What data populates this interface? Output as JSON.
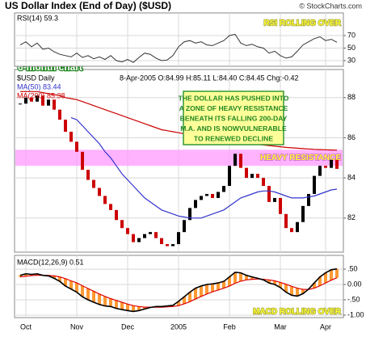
{
  "chart_data": [
    {
      "type": "candlestick",
      "title": "US Dollar Index (End of Day) ($USD)",
      "source": "© StockCharts.com",
      "quote": "8-Apr-2005 O:84.99 H:85.11 L:84.40 C:84.45 Chg:-0.42",
      "ylim": [
        80.3,
        89.4
      ],
      "yticks": [
        82,
        84,
        86,
        88
      ],
      "grid": true,
      "series": [
        {
          "name": "$USD Daily",
          "up_color": "#000000",
          "down_color": "#cc0000",
          "values": [
            87.7,
            88.0,
            87.8,
            88.1,
            87.6,
            87.9,
            87.4,
            86.9,
            86.3,
            85.8,
            85.3,
            84.4,
            83.9,
            83.5,
            83.1,
            82.7,
            82.4,
            81.9,
            81.5,
            81.2,
            80.8,
            81.0,
            81.2,
            81.3,
            81.0,
            80.7,
            80.6,
            80.7,
            81.3,
            81.9,
            82.5,
            82.9,
            83.1,
            83.2,
            83.0,
            83.3,
            83.6,
            84.6,
            85.2,
            84.5,
            84.0,
            84.2,
            84.0,
            83.6,
            82.8,
            83.0,
            82.2,
            81.5,
            81.3,
            81.8,
            82.6,
            83.2,
            84.1,
            84.6,
            84.5,
            84.9,
            84.45
          ]
        },
        {
          "name": "MA(50) 83.44",
          "color": "#3333cc",
          "values": [
            null,
            null,
            null,
            null,
            null,
            null,
            null,
            null,
            null,
            87.0,
            86.9,
            86.6,
            86.3,
            86.0,
            85.7,
            85.3,
            85.0,
            84.6,
            84.2,
            83.9,
            83.6,
            83.3,
            83.0,
            82.8,
            82.6,
            82.4,
            82.3,
            82.2,
            82.1,
            82.05,
            82.0,
            82.0,
            82.0,
            82.1,
            82.2,
            82.3,
            82.4,
            82.6,
            82.8,
            83.0,
            83.1,
            83.2,
            83.3,
            83.35,
            83.35,
            83.3,
            83.2,
            83.1,
            83.0,
            83.0,
            83.0,
            83.05,
            83.1,
            83.2,
            83.3,
            83.4,
            83.44
          ]
        },
        {
          "name": "MA(200) 85.38",
          "color": "#cc0000",
          "values": [
            88.3,
            88.3,
            88.3,
            88.3,
            88.25,
            88.2,
            88.15,
            88.1,
            88.0,
            87.95,
            87.9,
            87.8,
            87.7,
            87.6,
            87.5,
            87.4,
            87.3,
            87.2,
            87.1,
            87.0,
            86.9,
            86.8,
            86.7,
            86.6,
            86.5,
            86.4,
            86.35,
            86.3,
            86.25,
            86.2,
            86.15,
            86.1,
            86.05,
            86.0,
            85.95,
            85.9,
            85.85,
            85.8,
            85.78,
            85.75,
            85.72,
            85.7,
            85.67,
            85.64,
            85.61,
            85.58,
            85.55,
            85.52,
            85.5,
            85.48,
            85.46,
            85.44,
            85.42,
            85.41,
            85.4,
            85.39,
            85.38
          ]
        }
      ],
      "band": [
        84.6,
        85.4
      ],
      "band_color": "#ff99ff",
      "band_label": "HEAVY RESISTANCE",
      "chart_label": "6-month chart",
      "note": [
        "THE DOLLAR HAS PUSHED INTO",
        "A ZONE OF HEAVY RESISTANCE",
        "BENEATH ITS FALLING 200-DAY",
        "M.A. AND IS NOWVULNERABLE",
        "TO RENEWED DECLINE"
      ]
    },
    {
      "type": "line",
      "label": "RSI(14) 59.3",
      "annotation": "RSI ROLLING OVER",
      "ylim": [
        21,
        106
      ],
      "yticks": [
        30,
        50,
        70
      ],
      "grid": true,
      "series": [
        {
          "name": "RSI(14)",
          "color": "#333333",
          "values": [
            55,
            60,
            52,
            58,
            48,
            50,
            44,
            40,
            38,
            36,
            42,
            35,
            38,
            33,
            36,
            32,
            38,
            30,
            28,
            32,
            27,
            35,
            42,
            40,
            34,
            30,
            31,
            38,
            52,
            60,
            62,
            58,
            60,
            55,
            54,
            58,
            62,
            70,
            72,
            58,
            54,
            56,
            52,
            50,
            42,
            45,
            38,
            34,
            36,
            45,
            55,
            60,
            65,
            68,
            62,
            64,
            59.3
          ]
        }
      ]
    },
    {
      "type": "macd",
      "label": "MACD(12,26,9) 0.51",
      "annotation": "MACD ROLLING OVER",
      "ylim": [
        -1.08,
        0.95
      ],
      "yticks": [
        {
          "value": 0.5,
          "label": ".50"
        },
        {
          "value": 0,
          "label": "0.00"
        },
        {
          "value": -0.5,
          "label": "-.50"
        },
        {
          "value": -1,
          "label": "-1.00"
        }
      ],
      "grid": true,
      "categories": [
        null,
        "Oct",
        null,
        null,
        null,
        null,
        null,
        null,
        null,
        null,
        "Nov",
        null,
        null,
        null,
        null,
        null,
        null,
        null,
        null,
        "Dec",
        null,
        null,
        null,
        null,
        null,
        null,
        null,
        null,
        "2005",
        null,
        null,
        null,
        null,
        null,
        null,
        null,
        null,
        "Feb",
        null,
        null,
        null,
        null,
        null,
        null,
        null,
        null,
        "Mar",
        null,
        null,
        null,
        null,
        null,
        null,
        null,
        "Apr",
        null,
        null
      ],
      "histogram_color": "#ff9933",
      "series": [
        {
          "name": "MACD",
          "color": "#000000",
          "values": [
            0.3,
            0.35,
            0.33,
            0.35,
            0.3,
            0.28,
            0.2,
            0.1,
            -0.05,
            -0.15,
            -0.25,
            -0.4,
            -0.5,
            -0.58,
            -0.65,
            -0.7,
            -0.72,
            -0.78,
            -0.82,
            -0.85,
            -0.88,
            -0.85,
            -0.8,
            -0.75,
            -0.72,
            -0.72,
            -0.7,
            -0.68,
            -0.55,
            -0.4,
            -0.25,
            -0.12,
            -0.05,
            0.0,
            0.02,
            0.05,
            0.1,
            0.25,
            0.4,
            0.38,
            0.3,
            0.25,
            0.2,
            0.15,
            0.05,
            0.0,
            -0.1,
            -0.25,
            -0.35,
            -0.38,
            -0.3,
            -0.15,
            0.05,
            0.25,
            0.38,
            0.48,
            0.51
          ]
        },
        {
          "name": "Signal",
          "color": "#dd0000",
          "values": [
            0.25,
            0.27,
            0.29,
            0.3,
            0.3,
            0.3,
            0.28,
            0.25,
            0.19,
            0.12,
            0.05,
            -0.04,
            -0.13,
            -0.22,
            -0.31,
            -0.39,
            -0.46,
            -0.52,
            -0.58,
            -0.64,
            -0.69,
            -0.72,
            -0.74,
            -0.74,
            -0.74,
            -0.74,
            -0.73,
            -0.72,
            -0.69,
            -0.63,
            -0.56,
            -0.47,
            -0.39,
            -0.31,
            -0.24,
            -0.18,
            -0.12,
            -0.05,
            0.04,
            0.11,
            0.15,
            0.17,
            0.18,
            0.17,
            0.15,
            0.12,
            0.07,
            0.01,
            -0.06,
            -0.12,
            -0.16,
            -0.16,
            -0.12,
            -0.04,
            0.05,
            0.14,
            0.22
          ]
        }
      ]
    }
  ]
}
